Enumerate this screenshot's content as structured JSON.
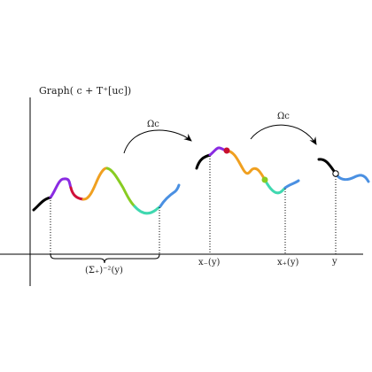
{
  "title": "Graph( c + T⁺[uc])",
  "arrow_labels": {
    "left": "Ωc",
    "right": "Ωc"
  },
  "brace_label": "(Σ₊)⁻²(y)",
  "x_labels": {
    "x_minus": "x₋(y)",
    "x_plus": "x₊(y)",
    "y": "y"
  },
  "colors": {
    "black": "#000000",
    "purple": "#8a2be2",
    "red": "#d0103a",
    "orange": "#f0a020",
    "green": "#88cc22",
    "teal": "#40d8b0",
    "blue": "#4a90e2",
    "node_red": "#c8102e",
    "node_green": "#88cc22"
  }
}
